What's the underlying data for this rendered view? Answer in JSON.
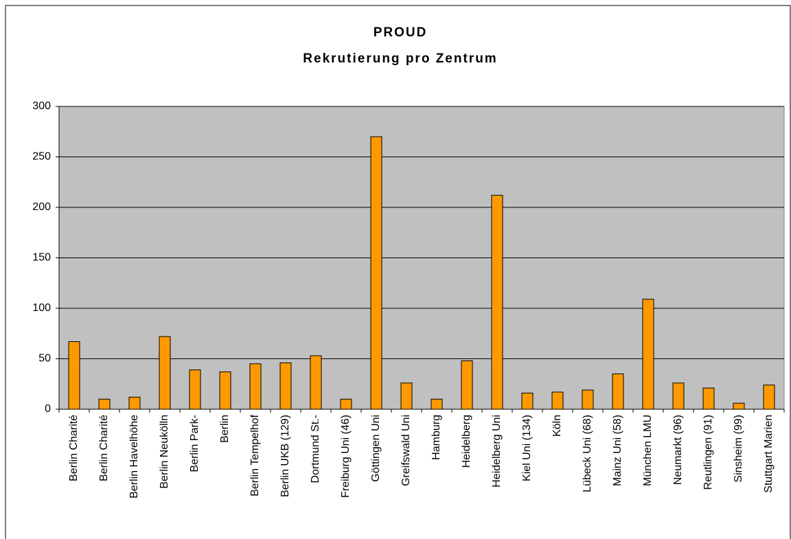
{
  "chart_data": {
    "type": "bar",
    "title": "PROUD",
    "subtitle": "Rekrutierung pro Zentrum",
    "categories": [
      "Berlin Charité",
      "Berlin Charité",
      "Berlin Havelhöhe",
      "Berlin Neukölln",
      "Berlin Park-",
      "Berlin",
      "Berlin Tempelhof",
      "Berlin UKB (129)",
      "Dortmund St.-",
      "Freiburg Uni (46)",
      "Göttingen Uni",
      "Greifswald Uni",
      "Hamburg",
      "Heidelberg",
      "Heidelberg Uni",
      "Kiel Uni (134)",
      "Köln",
      "Lübeck Uni (68)",
      "Mainz Uni  (58)",
      "München LMU",
      "Neumarkt (96)",
      "Reutlingen (91)",
      "Sinsheim (99)",
      "Stuttgart Marien"
    ],
    "values": [
      67,
      10,
      12,
      72,
      39,
      37,
      45,
      46,
      53,
      10,
      270,
      26,
      10,
      48,
      212,
      16,
      17,
      19,
      35,
      109,
      26,
      21,
      6,
      24
    ],
    "color": "#ff9900",
    "ylim": [
      0,
      300
    ],
    "yticks": [
      0,
      50,
      100,
      150,
      200,
      250,
      300
    ],
    "grid": true
  }
}
